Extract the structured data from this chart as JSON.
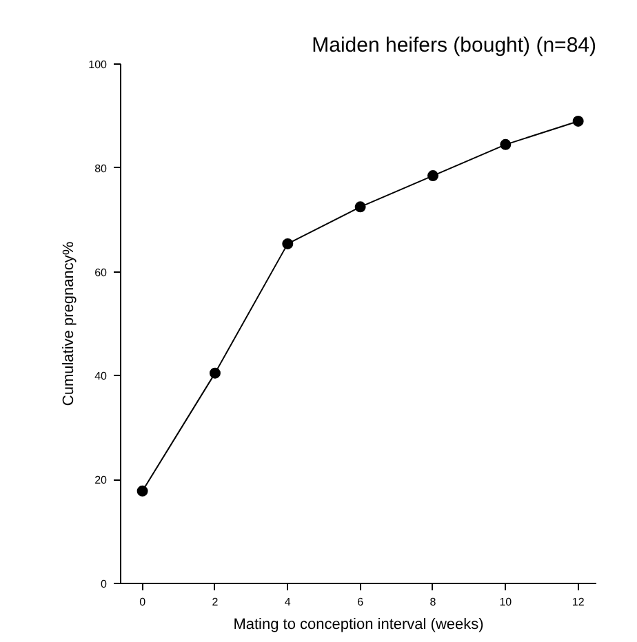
{
  "chart_data": {
    "type": "line",
    "title": "Maiden heifers (bought) (n=84)",
    "xlabel": "Mating to conception interval (weeks)",
    "ylabel": "Cumulative pregnancy%",
    "x": [
      0,
      2,
      4,
      6,
      8,
      10,
      12
    ],
    "series": [
      {
        "color": "#000000",
        "values": [
          17.8,
          40.5,
          65.4,
          72.5,
          78.5,
          84.5,
          89.0
        ]
      }
    ],
    "xlim": [
      -0.6,
      12.5
    ],
    "ylim": [
      0,
      100
    ],
    "xticks": [
      0,
      2,
      4,
      6,
      8,
      10,
      12
    ],
    "yticks": [
      0,
      20,
      40,
      60,
      80,
      100
    ],
    "marker": "circle",
    "line_style": "solid"
  }
}
